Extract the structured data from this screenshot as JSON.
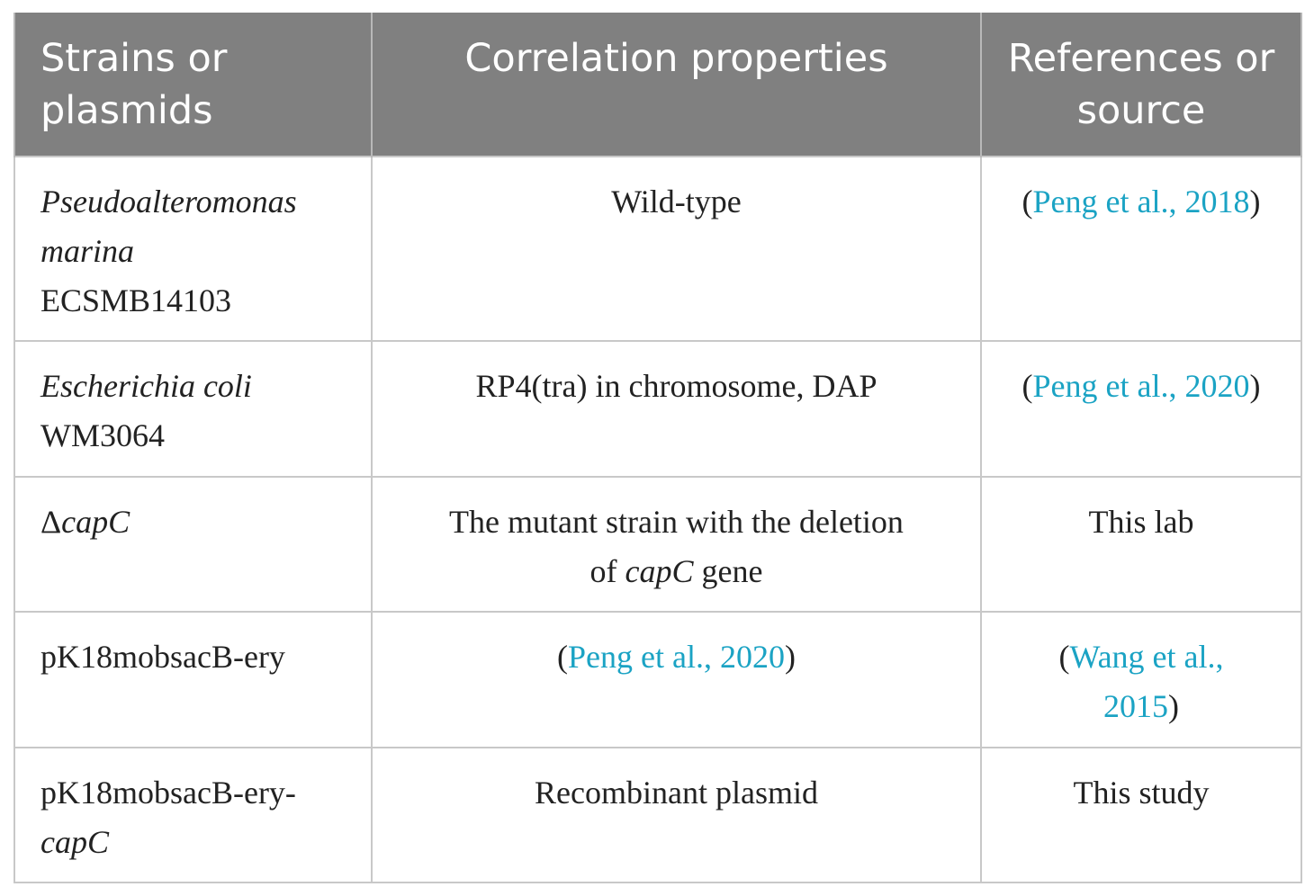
{
  "header": {
    "col1_line1": "Strains or",
    "col1_line2": "plasmids",
    "col2": "Correlation properties",
    "col3_line1": "References or",
    "col3_line2": "source"
  },
  "rows": [
    {
      "strain_line1": "Pseudoalteromonas",
      "strain_line2": "marina",
      "strain_line3": "ECSMB14103",
      "properties": "Wild-type",
      "ref_open": "(",
      "ref_link": "Peng et al., 2018",
      "ref_close": ")"
    },
    {
      "strain_line1": "Escherichia coli",
      "strain_line2": "WM3064",
      "properties": "RP4(tra) in chromosome, DAP",
      "ref_open": "(",
      "ref_link": "Peng et al., 2020",
      "ref_close": ")"
    },
    {
      "strain_delta": "Δ",
      "strain_gene": "capC",
      "properties_part1": "The mutant strain with the deletion",
      "properties_part2": "of ",
      "properties_gene": "capC",
      "properties_part3": " gene",
      "ref": "This lab"
    },
    {
      "strain": "pK18mobsacB-ery",
      "prop_open": "(",
      "prop_link": "Peng et al., 2020",
      "prop_close": ")",
      "ref_open": "(",
      "ref_link_line1": "Wang et al.,",
      "ref_link_line2": "2015",
      "ref_close": ")"
    },
    {
      "strain_line1": "pK18mobsacB-ery-",
      "strain_line2": "capC",
      "properties": "Recombinant plasmid",
      "ref": "This study"
    }
  ]
}
